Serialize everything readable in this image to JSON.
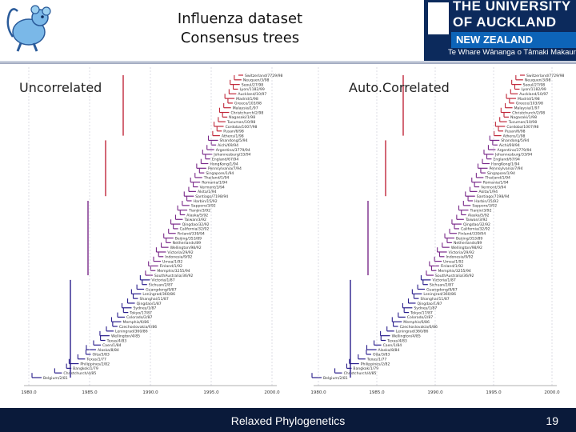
{
  "header": {
    "title_line1": "Influenza dataset",
    "title_line2": "Consensus trees"
  },
  "university_logo": {
    "line1": "THE UNIVERSITY",
    "line2": "OF AUCKLAND",
    "line3": "NEW ZEALAND",
    "line4": "Te Whare Wānanga o Tāmaki Makaurau"
  },
  "panels": {
    "left": {
      "label": "Uncorrelated"
    },
    "right": {
      "label": "Auto.Correlated"
    }
  },
  "tree_axis": {
    "ticks": [
      "1980.0",
      "1985.0",
      "1990.0",
      "1995.0",
      "2000.0"
    ]
  },
  "tree_taxa": [
    "Switzerland/7729/98",
    "Neuquen/3/98",
    "Seoul/27/98",
    "Lyon/1182/99",
    "Auckland/10/97",
    "Madrid/1/98",
    "Greece/103/98",
    "Malaysia/1/97",
    "Christchurch/2/98",
    "Nagasaki/1/98",
    "Tucuman/10/98",
    "Cordoba/1007/98",
    "Pusan/6/98",
    "Athens/1/98",
    "Shandong/5/94",
    "Aichi/69/94",
    "Argentina/3779/94",
    "Johannesburg/33/94",
    "England/67/94",
    "HongKong/1/94",
    "Pennsylvania/7/94",
    "Singapore/1/94",
    "Thailand/1/94",
    "Romania/1/94",
    "Vermont/3/94",
    "Akita/1/94",
    "Santiago/7198/94",
    "Harbin/15/92",
    "Sapporo/3/92",
    "Tianjin/3/92",
    "Alaska/5/92",
    "Taiwan/3/92",
    "Qingdao/32/92",
    "California/32/92",
    "Finland/339/94",
    "Beijing/353/89",
    "Netherlands/89",
    "Wellington/98/92",
    "Victoria/29/92",
    "Indonesia/9/92",
    "Umea/1/92",
    "Finland/1/92",
    "Memphis/3255/94",
    "SouthAustralia/36/92",
    "Victoria/1/87",
    "Sichuan/2/87",
    "Guangdong/9/87",
    "Leningrad/360/86",
    "Shanghai/11/87",
    "Qingdao/1/87",
    "Sydney/1/87",
    "Tokyo/17/87",
    "Colorado/2/87",
    "Memphis/6/86",
    "Czechoslovakia/6/86",
    "Leningrad/360/86",
    "Wellington/4/85",
    "Texas/4/83",
    "Caen/1/84",
    "Alaska/8/84",
    "Oita/3/83",
    "Texas/1/77",
    "Philippines/2/82",
    "Bangkok/1/79",
    "Christchurch/4/85",
    "Belgium/2/81"
  ],
  "footer": {
    "text": "Relaxed Phylogenetics",
    "page_number": "19"
  },
  "colors": {
    "footer_bg": "#0a1a3a",
    "logo_navy": "#0c2a5c",
    "logo_band": "#0d64b8",
    "tree_old": "#2a1e8c",
    "tree_mid": "#7a2a8a",
    "tree_recent": "#c0283a"
  }
}
